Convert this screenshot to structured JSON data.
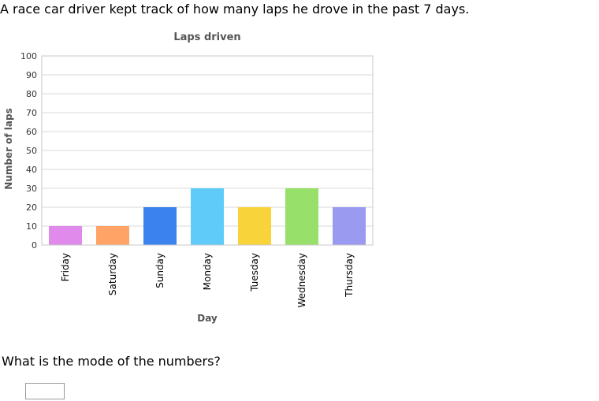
{
  "question": {
    "prompt": "A race car driver kept track of how many laps he drove in the past 7 days.",
    "ask": "What is the mode of the numbers?",
    "answer_value": ""
  },
  "chart_data": {
    "type": "bar",
    "title": "Laps driven",
    "xlabel": "Day",
    "ylabel": "Number of laps",
    "categories": [
      "Friday",
      "Saturday",
      "Sunday",
      "Monday",
      "Tuesday",
      "Wednesday",
      "Thursday"
    ],
    "values": [
      10,
      10,
      20,
      30,
      20,
      30,
      20
    ],
    "colors": [
      "#e08aeb",
      "#ffa366",
      "#3b82ee",
      "#5ecbf8",
      "#f8d43a",
      "#97e06a",
      "#9a9af0"
    ],
    "ylim": [
      0,
      100
    ],
    "yticks": [
      0,
      10,
      20,
      30,
      40,
      50,
      60,
      70,
      80,
      90,
      100
    ],
    "grid": true,
    "legend": "none"
  }
}
